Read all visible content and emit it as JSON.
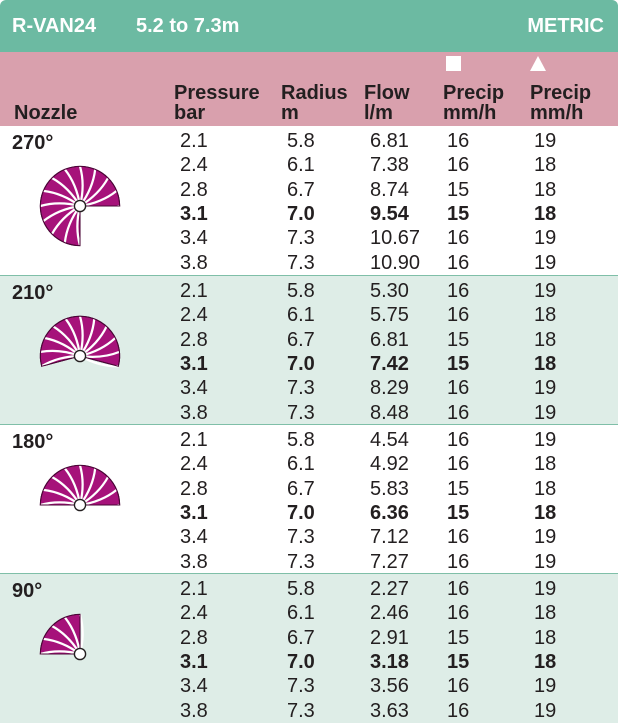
{
  "header": {
    "model": "R-VAN24",
    "range": "5.2 to 7.3m",
    "units": "METRIC"
  },
  "columns": {
    "nozzle": "Nozzle",
    "pressure": [
      "Pressure",
      "bar"
    ],
    "radius": [
      "Radius",
      "m"
    ],
    "flow": [
      "Flow",
      "l/m"
    ],
    "precip_square": [
      "Precip",
      "mm/h"
    ],
    "precip_triangle": [
      "Precip",
      "mm/h"
    ]
  },
  "colors": {
    "title_bar": "#6cbaa2",
    "header_bar": "#d9a0ad",
    "alt_band": "#deede7",
    "nozzle_fill": "#a6127a"
  },
  "groups": [
    {
      "angle": "270°",
      "icon": "nozzle-270-icon",
      "rows": [
        {
          "pressure": "2.1",
          "radius": "5.8",
          "flow": "6.81",
          "precip_sq": "16",
          "precip_tri": "19",
          "bold": false
        },
        {
          "pressure": "2.4",
          "radius": "6.1",
          "flow": "7.38",
          "precip_sq": "16",
          "precip_tri": "18",
          "bold": false
        },
        {
          "pressure": "2.8",
          "radius": "6.7",
          "flow": "8.74",
          "precip_sq": "15",
          "precip_tri": "18",
          "bold": false
        },
        {
          "pressure": "3.1",
          "radius": "7.0",
          "flow": "9.54",
          "precip_sq": "15",
          "precip_tri": "18",
          "bold": true
        },
        {
          "pressure": "3.4",
          "radius": "7.3",
          "flow": "10.67",
          "precip_sq": "16",
          "precip_tri": "19",
          "bold": false
        },
        {
          "pressure": "3.8",
          "radius": "7.3",
          "flow": "10.90",
          "precip_sq": "16",
          "precip_tri": "19",
          "bold": false
        }
      ]
    },
    {
      "angle": "210°",
      "icon": "nozzle-210-icon",
      "rows": [
        {
          "pressure": "2.1",
          "radius": "5.8",
          "flow": "5.30",
          "precip_sq": "16",
          "precip_tri": "19",
          "bold": false
        },
        {
          "pressure": "2.4",
          "radius": "6.1",
          "flow": "5.75",
          "precip_sq": "16",
          "precip_tri": "18",
          "bold": false
        },
        {
          "pressure": "2.8",
          "radius": "6.7",
          "flow": "6.81",
          "precip_sq": "15",
          "precip_tri": "18",
          "bold": false
        },
        {
          "pressure": "3.1",
          "radius": "7.0",
          "flow": "7.42",
          "precip_sq": "15",
          "precip_tri": "18",
          "bold": true
        },
        {
          "pressure": "3.4",
          "radius": "7.3",
          "flow": "8.29",
          "precip_sq": "16",
          "precip_tri": "19",
          "bold": false
        },
        {
          "pressure": "3.8",
          "radius": "7.3",
          "flow": "8.48",
          "precip_sq": "16",
          "precip_tri": "19",
          "bold": false
        }
      ]
    },
    {
      "angle": "180°",
      "icon": "nozzle-180-icon",
      "rows": [
        {
          "pressure": "2.1",
          "radius": "5.8",
          "flow": "4.54",
          "precip_sq": "16",
          "precip_tri": "19",
          "bold": false
        },
        {
          "pressure": "2.4",
          "radius": "6.1",
          "flow": "4.92",
          "precip_sq": "16",
          "precip_tri": "18",
          "bold": false
        },
        {
          "pressure": "2.8",
          "radius": "6.7",
          "flow": "5.83",
          "precip_sq": "15",
          "precip_tri": "18",
          "bold": false
        },
        {
          "pressure": "3.1",
          "radius": "7.0",
          "flow": "6.36",
          "precip_sq": "15",
          "precip_tri": "18",
          "bold": true
        },
        {
          "pressure": "3.4",
          "radius": "7.3",
          "flow": "7.12",
          "precip_sq": "16",
          "precip_tri": "19",
          "bold": false
        },
        {
          "pressure": "3.8",
          "radius": "7.3",
          "flow": "7.27",
          "precip_sq": "16",
          "precip_tri": "19",
          "bold": false
        }
      ]
    },
    {
      "angle": "90°",
      "icon": "nozzle-90-icon",
      "rows": [
        {
          "pressure": "2.1",
          "radius": "5.8",
          "flow": "2.27",
          "precip_sq": "16",
          "precip_tri": "19",
          "bold": false
        },
        {
          "pressure": "2.4",
          "radius": "6.1",
          "flow": "2.46",
          "precip_sq": "16",
          "precip_tri": "18",
          "bold": false
        },
        {
          "pressure": "2.8",
          "radius": "6.7",
          "flow": "2.91",
          "precip_sq": "15",
          "precip_tri": "18",
          "bold": false
        },
        {
          "pressure": "3.1",
          "radius": "7.0",
          "flow": "3.18",
          "precip_sq": "15",
          "precip_tri": "18",
          "bold": true
        },
        {
          "pressure": "3.4",
          "radius": "7.3",
          "flow": "3.56",
          "precip_sq": "16",
          "precip_tri": "19",
          "bold": false
        },
        {
          "pressure": "3.8",
          "radius": "7.3",
          "flow": "3.63",
          "precip_sq": "16",
          "precip_tri": "19",
          "bold": false
        }
      ]
    }
  ]
}
